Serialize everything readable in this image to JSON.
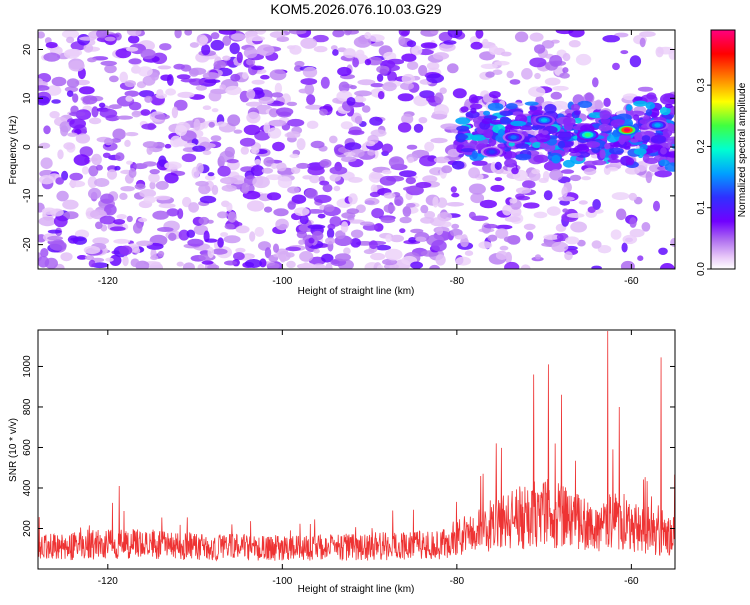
{
  "chart_data": [
    {
      "type": "heatmap",
      "title": "KOM5.2026.076.10.03.G29",
      "xlabel": "Height of straight line (km)",
      "ylabel": "Frequency (Hz)",
      "xlim": [
        -128,
        -55
      ],
      "ylim": [
        -25,
        24
      ],
      "x_ticks": [
        -120,
        -100,
        -80,
        -60
      ],
      "y_ticks": [
        -20,
        -10,
        0,
        10,
        20
      ],
      "colorbar": {
        "label": "Normalized spectral amplitude",
        "range": [
          0,
          0.39
        ],
        "ticks": [
          0.0,
          0.1,
          0.2,
          0.3
        ],
        "colormap": [
          "#ffffff",
          "#e8c8f8",
          "#b070f0",
          "#7000ff",
          "#3030ff",
          "#00a0ff",
          "#00ffd0",
          "#40ff40",
          "#ffff00",
          "#ff8000",
          "#ff0000",
          "#ff0080"
        ]
      },
      "strong_features": [
        {
          "x": -60.5,
          "y": 3.5,
          "amplitude": 0.38
        },
        {
          "x": -65.0,
          "y": 2.5,
          "amplitude": 0.22
        },
        {
          "x": -70.0,
          "y": 5.5,
          "amplitude": 0.17
        },
        {
          "x": -73.5,
          "y": 2.0,
          "amplitude": 0.14
        },
        {
          "x": -76.0,
          "y": -1.0,
          "amplitude": 0.12
        },
        {
          "x": -57.0,
          "y": 4.5,
          "amplitude": 0.16
        }
      ]
    },
    {
      "type": "line",
      "xlabel": "Height of straight line (km)",
      "ylabel": "SNR (10 * v/v)",
      "xlim": [
        -128,
        -55
      ],
      "ylim": [
        0,
        1180
      ],
      "x_ticks": [
        -120,
        -100,
        -80,
        -60
      ],
      "y_ticks": [
        200,
        400,
        600,
        800,
        1000
      ],
      "series": [
        {
          "name": "SNR",
          "color": "#ee3333",
          "envelope_x": [
            -128,
            -120,
            -110,
            -100,
            -90,
            -82,
            -78,
            -75,
            -72,
            -70,
            -68,
            -66,
            -64,
            -62.5,
            -61,
            -59,
            -57.5,
            -56,
            -55
          ],
          "baseline": [
            110,
            140,
            120,
            110,
            120,
            130,
            200,
            250,
            280,
            300,
            280,
            250,
            220,
            280,
            250,
            220,
            200,
            160,
            200
          ],
          "peaks": [
            {
              "x": -62.7,
              "y": 1175
            },
            {
              "x": -56.6,
              "y": 1045
            },
            {
              "x": -69.5,
              "y": 1010
            },
            {
              "x": -71.2,
              "y": 960
            },
            {
              "x": -61.4,
              "y": 800
            },
            {
              "x": -68.0,
              "y": 860
            },
            {
              "x": -75.5,
              "y": 620
            },
            {
              "x": -77.0,
              "y": 470
            },
            {
              "x": -118.7,
              "y": 410
            }
          ]
        }
      ]
    }
  ]
}
